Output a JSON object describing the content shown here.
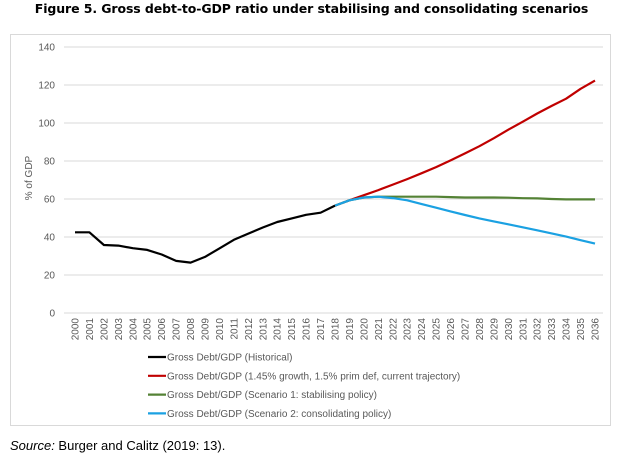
{
  "figure_title": "Figure 5. Gross debt-to-GDP ratio under stabilising and consolidating scenarios",
  "source": {
    "label": "Source:",
    "text": " Burger and Calitz (2019: 13)."
  },
  "chart_data": {
    "type": "line",
    "title": "Figure 5. Gross debt-to-GDP ratio under stabilising and consolidating scenarios",
    "xlabel": "",
    "ylabel": "% of GDP",
    "ylim": [
      0,
      140
    ],
    "yticks": [
      0,
      20,
      40,
      60,
      80,
      100,
      120,
      140
    ],
    "grid": true,
    "legend_position": "bottom",
    "x": [
      2000,
      2001,
      2002,
      2003,
      2004,
      2005,
      2006,
      2007,
      2008,
      2009,
      2010,
      2011,
      2012,
      2013,
      2014,
      2015,
      2016,
      2017,
      2018,
      2019,
      2020,
      2021,
      2022,
      2023,
      2024,
      2025,
      2026,
      2027,
      2028,
      2029,
      2030,
      2031,
      2032,
      2033,
      2034,
      2035,
      2036
    ],
    "series": [
      {
        "name": "Gross Debt/GDP (Historical)",
        "color": "#000000",
        "x": [
          2000,
          2001,
          2002,
          2003,
          2004,
          2005,
          2006,
          2007,
          2008,
          2009,
          2010,
          2011,
          2012,
          2013,
          2014,
          2015,
          2016,
          2017,
          2018
        ],
        "values": [
          42.5,
          42.5,
          35.8,
          35.5,
          34.1,
          33.2,
          30.8,
          27.4,
          26.5,
          29.5,
          34.0,
          38.5,
          41.8,
          45.0,
          47.9,
          49.8,
          51.7,
          52.8,
          56.5
        ]
      },
      {
        "name": "Gross Debt/GDP (1.45% growth, 1.5% prim def, current trajectory)",
        "color": "#c00000",
        "x": [
          2018,
          2019,
          2020,
          2021,
          2022,
          2023,
          2024,
          2025,
          2026,
          2027,
          2028,
          2029,
          2030,
          2031,
          2032,
          2033,
          2034,
          2035,
          2036
        ],
        "values": [
          56.5,
          59.3,
          62.0,
          64.7,
          67.6,
          70.5,
          73.6,
          76.8,
          80.3,
          84.0,
          87.8,
          92.0,
          96.5,
          100.7,
          105.0,
          109.0,
          112.8,
          118.0,
          122.3
        ]
      },
      {
        "name": "Gross Debt/GDP (Scenario 1: stabilising policy)",
        "color": "#548235",
        "x": [
          2018,
          2019,
          2020,
          2021,
          2022,
          2023,
          2024,
          2025,
          2026,
          2027,
          2028,
          2029,
          2030,
          2031,
          2032,
          2033,
          2034,
          2035,
          2036
        ],
        "values": [
          56.5,
          59.3,
          60.8,
          61.2,
          61.2,
          61.2,
          61.2,
          61.2,
          61.0,
          60.8,
          60.8,
          60.8,
          60.7,
          60.4,
          60.3,
          60.0,
          59.8,
          59.8,
          59.8
        ]
      },
      {
        "name": "Gross Debt/GDP (Scenario 2: consolidating policy)",
        "color": "#1ba1e2",
        "x": [
          2018,
          2019,
          2020,
          2021,
          2022,
          2023,
          2024,
          2025,
          2026,
          2027,
          2028,
          2029,
          2030,
          2031,
          2032,
          2033,
          2034,
          2035,
          2036
        ],
        "values": [
          56.5,
          59.3,
          60.8,
          61.2,
          60.5,
          59.3,
          57.3,
          55.4,
          53.5,
          51.6,
          49.8,
          48.2,
          46.7,
          45.1,
          43.5,
          41.9,
          40.2,
          38.3,
          36.5
        ]
      }
    ]
  }
}
